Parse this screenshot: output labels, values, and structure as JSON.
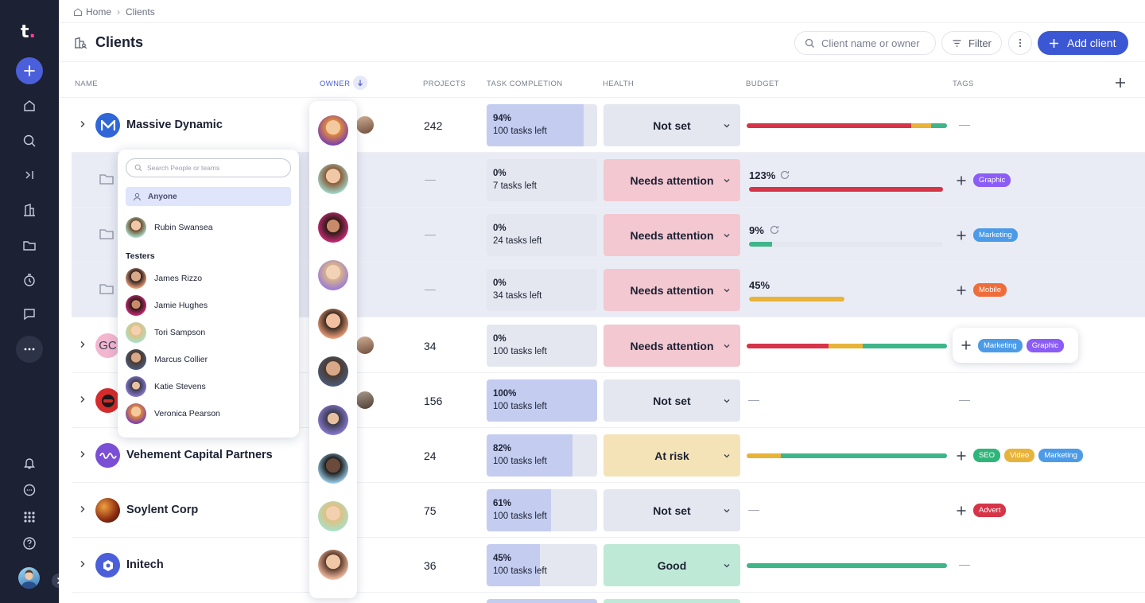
{
  "brand": {
    "logo": "t",
    "accent": "#3c57d3"
  },
  "breadcrumb": {
    "home": "Home",
    "current": "Clients"
  },
  "page": {
    "title": "Clients"
  },
  "toolbar": {
    "search_placeholder": "Client name or owner",
    "filter_label": "Filter",
    "add_client_label": "Add client"
  },
  "table": {
    "headers": {
      "name": "NAME",
      "owner": "OWNER",
      "projects": "PROJECTS",
      "task_completion": "TASK COMPLETION",
      "health": "HEALTH",
      "budget": "BUDGET",
      "tags": "TAGS"
    },
    "rows": [
      {
        "name": "Massive Dynamic",
        "projects": "242",
        "pct": "94%",
        "tasks_left": "100 tasks left",
        "health": "Not set",
        "budget_pct": ""
      },
      {
        "name": "",
        "projects": "—",
        "pct": "0%",
        "tasks_left": "7 tasks left",
        "health": "Needs attention",
        "budget_pct": "123%",
        "tags": [
          "Graphic"
        ]
      },
      {
        "name": "",
        "projects": "—",
        "pct": "0%",
        "tasks_left": "24 tasks left",
        "health": "Needs attention",
        "budget_pct": "9%",
        "tags": [
          "Marketing"
        ]
      },
      {
        "name": "",
        "projects": "—",
        "pct": "0%",
        "tasks_left": "34 tasks left",
        "health": "Needs attention",
        "budget_pct": "45%",
        "tags": [
          "Mobile"
        ]
      },
      {
        "name": "",
        "logo_text": "GC",
        "projects": "34",
        "pct": "0%",
        "tasks_left": "100 tasks left",
        "health": "Needs attention",
        "tags": [
          "Marketing",
          "Graphic"
        ]
      },
      {
        "name": "",
        "projects": "156",
        "pct": "100%",
        "tasks_left": "100 tasks left",
        "health": "Not set"
      },
      {
        "name": "Vehement Capital Partners",
        "projects": "24",
        "pct": "82%",
        "tasks_left": "100 tasks left",
        "health": "At risk",
        "tags": [
          "SEO",
          "Video",
          "Marketing"
        ]
      },
      {
        "name": "Soylent Corp",
        "projects": "75",
        "pct": "61%",
        "tasks_left": "100 tasks left",
        "health": "Not set",
        "tags": [
          "Advert"
        ]
      },
      {
        "name": "Initech",
        "projects": "36",
        "pct": "45%",
        "tasks_left": "100 tasks left",
        "health": "Good"
      }
    ],
    "dash": "—"
  },
  "owner_popup": {
    "search_placeholder": "Search People or teams",
    "anyone_label": "Anyone",
    "top_person": "Rubin Swansea",
    "group_label": "Testers",
    "people": [
      "James Rizzo",
      "Jamie Hughes",
      "Tori Sampson",
      "Marcus Collier",
      "Katie Stevens",
      "Veronica Pearson"
    ]
  },
  "colors": {
    "sidebar": "#1c2133",
    "red": "#d63447",
    "yellow": "#e8b339",
    "green": "#3fb58a",
    "tag_purple": "#8b5cf6",
    "tag_blue": "#4c9be8",
    "tag_orange": "#ef6d3a",
    "tag_green": "#2fb57a",
    "tag_yellow": "#e8b339",
    "tag_red": "#d63447"
  }
}
